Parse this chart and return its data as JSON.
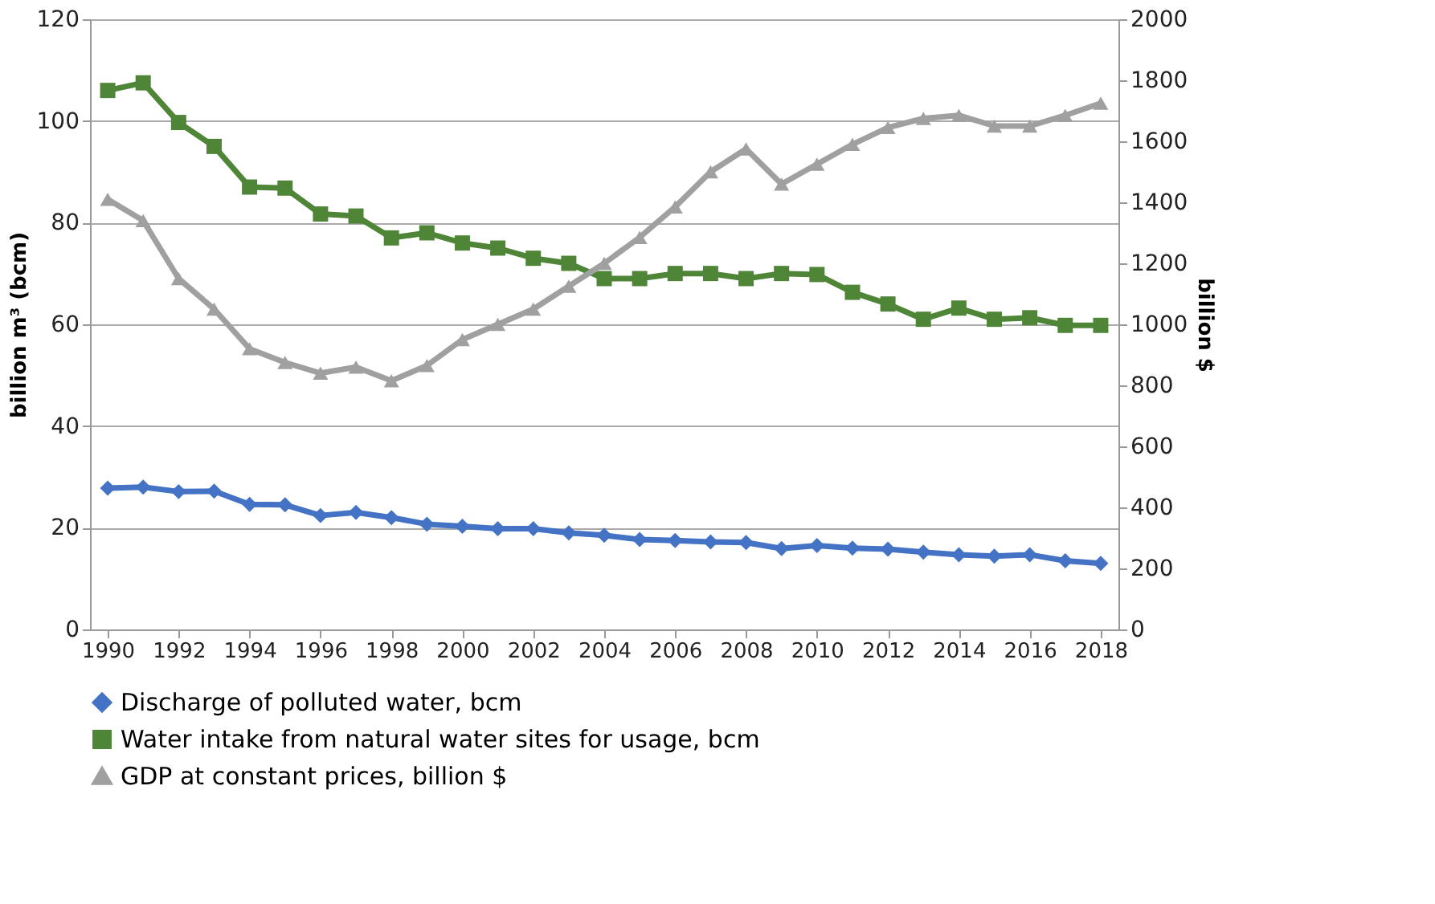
{
  "chart_data": {
    "type": "line",
    "xlabel": null,
    "ylabel": "billion m³ (bcm)",
    "y2label": "billion $",
    "x": [
      1990,
      1991,
      1992,
      1993,
      1994,
      1995,
      1996,
      1997,
      1998,
      1999,
      2000,
      2001,
      2002,
      2003,
      2004,
      2005,
      2006,
      2007,
      2008,
      2009,
      2010,
      2011,
      2012,
      2013,
      2014,
      2015,
      2016,
      2017,
      2018
    ],
    "xlim": [
      1989.5,
      2018.5
    ],
    "xticks": [
      1990,
      1992,
      1994,
      1996,
      1998,
      2000,
      2002,
      2004,
      2006,
      2008,
      2010,
      2012,
      2014,
      2016,
      2018
    ],
    "ylim": [
      0,
      120
    ],
    "yticks": [
      0,
      20,
      40,
      60,
      80,
      100,
      120
    ],
    "y2lim": [
      0,
      2000
    ],
    "y2ticks": [
      0,
      200,
      400,
      600,
      800,
      1000,
      1200,
      1400,
      1600,
      1800,
      2000
    ],
    "grid": "y",
    "legend": "bottom",
    "series": [
      {
        "name": "Discharge of polluted water, bcm",
        "color": "#4472c4",
        "marker": "diamond",
        "values": [
          27.8,
          28,
          27.1,
          27.2,
          24.6,
          24.5,
          22.4,
          23,
          22,
          20.7,
          20.3,
          19.8,
          19.8,
          19,
          18.5,
          17.7,
          17.5,
          17.2,
          17.1,
          15.9,
          16.5,
          16,
          15.8,
          15.2,
          14.7,
          14.4,
          14.7,
          13.5,
          13
        ]
      },
      {
        "name": "Water intake from natural water sites for usage, bcm",
        "color": "#4e8537",
        "marker": "square",
        "values": [
          106,
          107.5,
          99.7,
          95,
          87,
          86.8,
          81.7,
          81.3,
          77,
          78,
          76,
          75,
          73,
          72,
          69,
          69,
          70,
          70,
          69,
          70,
          69.8,
          66.3,
          64,
          61,
          63.2,
          61,
          61.3,
          59.8,
          59.8
        ]
      },
      {
        "name": "GDP at constant prices, billion $",
        "color": "#a0a0a0",
        "marker": "triangle",
        "axis": "y2",
        "values": [
          1410,
          1340,
          1150,
          1050,
          920,
          875,
          840,
          860,
          815,
          865,
          950,
          1000,
          1050,
          1125,
          1200,
          1285,
          1385,
          1500,
          1575,
          1460,
          1525,
          1590,
          1645,
          1675,
          1685,
          1650,
          1650,
          1685,
          1725
        ]
      }
    ]
  }
}
